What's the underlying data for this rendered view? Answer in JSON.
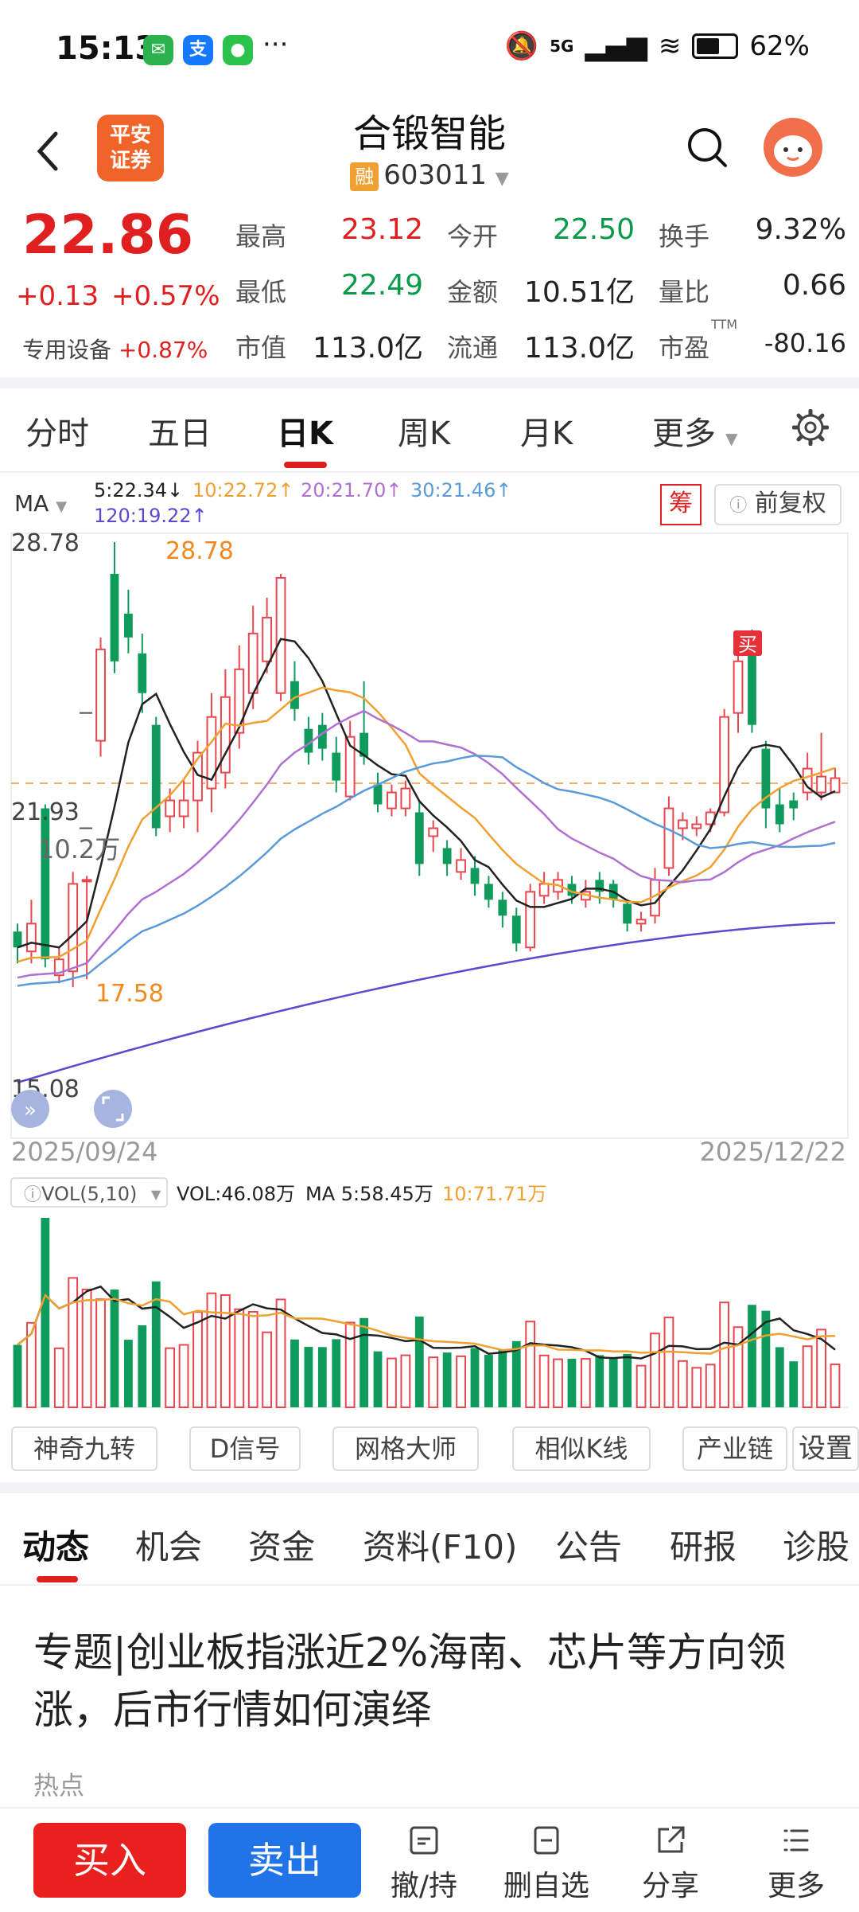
{
  "status": {
    "time": "15:13",
    "battery": "62%",
    "network": "5G"
  },
  "header": {
    "broker_logo_line1": "平安",
    "broker_logo_line2": "证券",
    "stock_name": "合锻智能",
    "rong_badge": "融",
    "stock_code": "603011"
  },
  "quote": {
    "price": "22.86",
    "change_abs": "+0.13",
    "change_pct": "+0.57%",
    "sector_label": "专用设备",
    "sector_pct": "+0.87%",
    "fields": [
      {
        "label": "最高",
        "value": "23.12",
        "color": "red"
      },
      {
        "label": "今开",
        "value": "22.50",
        "color": "green"
      },
      {
        "label": "换手",
        "value": "9.32%",
        "color": "black"
      },
      {
        "label": "最低",
        "value": "22.49",
        "color": "green"
      },
      {
        "label": "金额",
        "value": "10.51亿",
        "color": "black"
      },
      {
        "label": "量比",
        "value": "0.66",
        "color": "black"
      },
      {
        "label": "市值",
        "value": "113.0亿",
        "color": "black"
      },
      {
        "label": "流通",
        "value": "113.0亿",
        "color": "black"
      },
      {
        "label": "市盈",
        "value": "-80.16",
        "color": "black"
      }
    ],
    "pe_superscript": "TTM"
  },
  "kline_tabs": [
    "分时",
    "五日",
    "日K",
    "周K",
    "月K",
    "更多"
  ],
  "active_tab": "日K",
  "ma_legend": {
    "label": "MA",
    "items": [
      {
        "text": "5:22.34↓",
        "color": "#222222"
      },
      {
        "text": "10:22.72↑",
        "color": "#f0a030"
      },
      {
        "text": "20:21.70↑",
        "color": "#b070d0"
      },
      {
        "text": "30:21.46↑",
        "color": "#5a9ad8"
      },
      {
        "text": "120:19.22↑",
        "color": "#5a4ad0"
      }
    ],
    "chou_badge": "筹",
    "fq_button": "前复权"
  },
  "chart_data": {
    "type": "candlestick",
    "y_labels": [
      "28.78",
      "21.93",
      "15.08"
    ],
    "ylim": [
      15.08,
      28.78
    ],
    "date_start": "2025/09/24",
    "date_end": "2025/12/22",
    "high_label": "28.78",
    "low_label": "17.58",
    "buy_marker": "买",
    "candles": [
      [
        19.0,
        18.6,
        19.2,
        18.2
      ],
      [
        18.5,
        19.2,
        19.8,
        18.2
      ],
      [
        22.1,
        18.3,
        22.2,
        18.1
      ],
      [
        17.9,
        18.3,
        18.6,
        17.7
      ],
      [
        18.0,
        20.2,
        20.5,
        17.6
      ],
      [
        20.3,
        20.3,
        20.4,
        17.8
      ],
      [
        23.8,
        26.1,
        26.4,
        23.4
      ],
      [
        28.0,
        25.8,
        28.8,
        25.5
      ],
      [
        27.0,
        26.4,
        27.6,
        26.0
      ],
      [
        26.0,
        25.0,
        26.5,
        24.5
      ],
      [
        24.2,
        21.6,
        24.4,
        21.4
      ],
      [
        21.9,
        22.3,
        22.6,
        21.5
      ],
      [
        21.9,
        22.3,
        22.8,
        21.6
      ],
      [
        22.3,
        23.5,
        23.8,
        21.5
      ],
      [
        22.6,
        24.4,
        25.0,
        22.0
      ],
      [
        23.0,
        24.9,
        25.6,
        22.6
      ],
      [
        24.0,
        25.6,
        26.2,
        23.6
      ],
      [
        25.0,
        26.5,
        27.2,
        24.6
      ],
      [
        25.8,
        26.9,
        27.4,
        25.5
      ],
      [
        25.0,
        27.9,
        28.0,
        24.8
      ],
      [
        25.3,
        24.6,
        25.8,
        24.3
      ],
      [
        24.1,
        23.5,
        24.4,
        23.2
      ],
      [
        24.2,
        23.6,
        24.5,
        23.3
      ],
      [
        23.5,
        22.8,
        23.9,
        22.5
      ],
      [
        22.4,
        23.9,
        24.3,
        22.3
      ],
      [
        24.0,
        23.4,
        25.3,
        23.2
      ],
      [
        22.7,
        22.2,
        23.0,
        22.0
      ],
      [
        22.1,
        22.5,
        22.7,
        21.9
      ],
      [
        22.1,
        22.6,
        22.8,
        21.9
      ],
      [
        22.0,
        20.7,
        22.3,
        20.4
      ],
      [
        21.4,
        21.6,
        21.8,
        21.0
      ],
      [
        21.1,
        20.7,
        21.3,
        20.4
      ],
      [
        20.5,
        20.8,
        21.1,
        20.3
      ],
      [
        20.6,
        20.2,
        20.9,
        19.9
      ],
      [
        20.2,
        19.8,
        20.4,
        19.6
      ],
      [
        19.8,
        19.4,
        20.0,
        19.1
      ],
      [
        19.4,
        18.7,
        19.6,
        18.5
      ],
      [
        18.6,
        20.0,
        20.2,
        18.5
      ],
      [
        19.9,
        20.2,
        20.5,
        19.7
      ],
      [
        20.0,
        20.3,
        20.5,
        19.8
      ],
      [
        20.2,
        19.9,
        20.4,
        19.7
      ],
      [
        19.8,
        20.0,
        20.3,
        19.6
      ],
      [
        20.3,
        20.0,
        20.5,
        19.7
      ],
      [
        20.2,
        19.8,
        20.3,
        19.6
      ],
      [
        19.7,
        19.2,
        19.8,
        19.0
      ],
      [
        19.2,
        19.3,
        19.5,
        19.0
      ],
      [
        19.4,
        20.3,
        20.6,
        19.2
      ],
      [
        20.6,
        22.1,
        22.4,
        20.4
      ],
      [
        21.6,
        21.8,
        22.0,
        21.3
      ],
      [
        21.6,
        21.7,
        21.9,
        21.4
      ],
      [
        21.7,
        22.0,
        22.1,
        21.5
      ],
      [
        22.0,
        24.4,
        24.6,
        21.9
      ],
      [
        24.5,
        25.8,
        26.0,
        24.0
      ],
      [
        26.3,
        24.2,
        26.6,
        24.0
      ],
      [
        23.6,
        22.1,
        23.8,
        21.6
      ],
      [
        22.2,
        21.7,
        22.6,
        21.5
      ],
      [
        22.3,
        22.1,
        22.5,
        21.8
      ],
      [
        22.5,
        23.1,
        23.5,
        22.3
      ],
      [
        22.5,
        22.9,
        24.0,
        22.3
      ],
      [
        22.5,
        22.86,
        23.12,
        22.49
      ]
    ]
  },
  "vol_legend": {
    "selector": "VOL(5,10)",
    "vol": "VOL:46.08万",
    "ma5": "MA 5:58.45万",
    "ma10": "10:71.71万",
    "axis_label": "10.2万"
  },
  "tools": [
    "神奇九转",
    "D信号",
    "网格大师",
    "相似K线",
    "产业链",
    "设置"
  ],
  "news_tabs": [
    "动态",
    "机会",
    "资金",
    "资料(F10)",
    "公告",
    "研报",
    "诊股"
  ],
  "active_news_tab": "动态",
  "news": {
    "title": "专题|创业板指涨近2%海南、芯片等方向领涨，后市行情如何演绎",
    "tag": "热点"
  },
  "bottom_bar": {
    "buy": "买入",
    "sell": "卖出",
    "actions": [
      "撤/持",
      "删自选",
      "分享",
      "更多"
    ]
  }
}
